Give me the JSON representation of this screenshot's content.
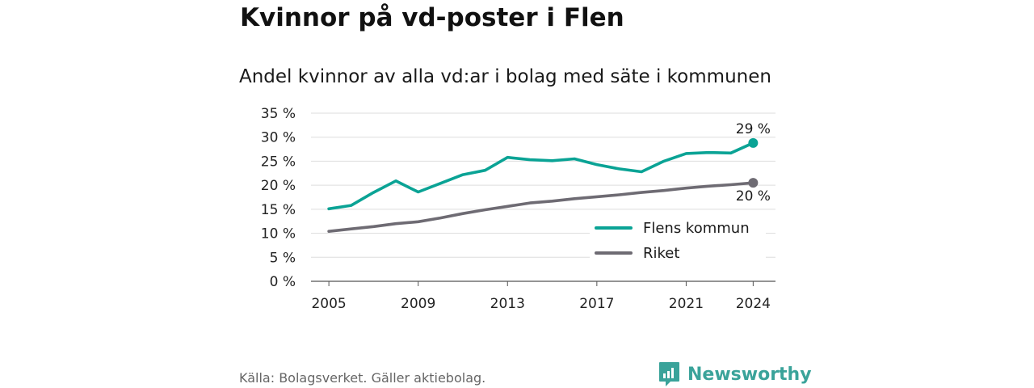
{
  "title": "Kvinnor på vd-poster i Flen",
  "subtitle": "Andel kvinnor av alla vd:ar i bolag med säte i kommunen",
  "source": "Källa: Bolagsverket. Gäller aktiebolag.",
  "brand": {
    "name": "Newsworthy",
    "icon": "newsworthy-logo-icon",
    "color": "#3aa39a"
  },
  "chart_data": {
    "type": "line",
    "title": "Andel kvinnor av alla vd:ar i bolag med säte i kommunen",
    "x": [
      2005,
      2006,
      2007,
      2008,
      2009,
      2010,
      2011,
      2012,
      2013,
      2014,
      2015,
      2016,
      2017,
      2018,
      2019,
      2020,
      2021,
      2022,
      2023,
      2024
    ],
    "xticks": [
      2005,
      2009,
      2013,
      2017,
      2021,
      2024
    ],
    "xtick_labels": [
      "2005",
      "2009",
      "2013",
      "2017",
      "2021",
      "2024"
    ],
    "ylim": [
      0,
      35
    ],
    "yticks": [
      0,
      5,
      10,
      15,
      20,
      25,
      30,
      35
    ],
    "ytick_labels": [
      "0 %",
      "5 %",
      "10 %",
      "15 %",
      "20 %",
      "25 %",
      "30 %",
      "35 %"
    ],
    "grid": true,
    "legend_position": "bottom-right",
    "series": [
      {
        "name": "Flens kommun",
        "color": "#0aa395",
        "values": [
          15.1,
          15.8,
          18.5,
          20.9,
          18.6,
          20.4,
          22.2,
          23.1,
          25.8,
          25.3,
          25.1,
          25.5,
          24.3,
          23.4,
          22.8,
          25.0,
          26.6,
          26.8,
          26.7,
          28.8
        ],
        "end_label": "29 %"
      },
      {
        "name": "Riket",
        "color": "#6e6b73",
        "values": [
          10.4,
          10.9,
          11.4,
          12.0,
          12.4,
          13.2,
          14.1,
          14.9,
          15.6,
          16.3,
          16.7,
          17.2,
          17.6,
          18.0,
          18.5,
          18.9,
          19.4,
          19.8,
          20.1,
          20.5
        ],
        "end_label": "20 %"
      }
    ]
  }
}
